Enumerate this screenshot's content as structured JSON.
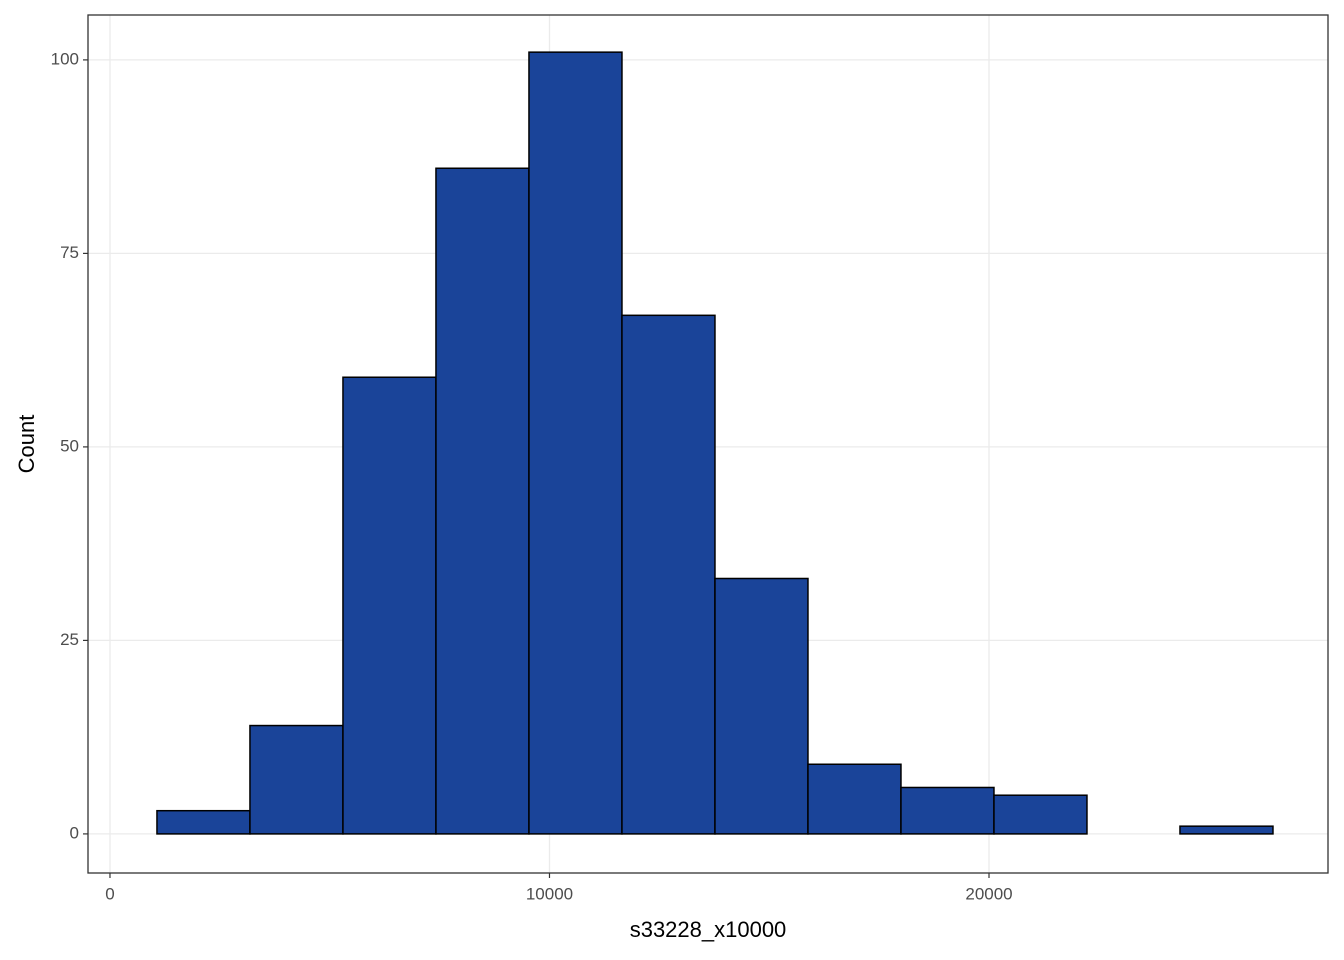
{
  "chart_data": {
    "type": "histogram",
    "x_label": "s33228_x10000",
    "y_label": "Count",
    "bins": [
      1069,
      3185,
      5301,
      7417,
      9533,
      11649,
      13765,
      15881,
      17997,
      20113,
      22229,
      24345,
      26461
    ],
    "values": [
      3,
      14,
      59,
      86,
      101,
      67,
      33,
      9,
      6,
      5,
      0,
      1
    ],
    "color": "#1a4499",
    "edge_color": "#000000",
    "xlim": [
      -500,
      27713
    ],
    "xticks": [
      0,
      10000,
      20000
    ],
    "ylim": [
      -5.05,
      105.8
    ],
    "yticks": [
      0,
      25,
      50,
      75,
      100
    ],
    "grid": true
  }
}
